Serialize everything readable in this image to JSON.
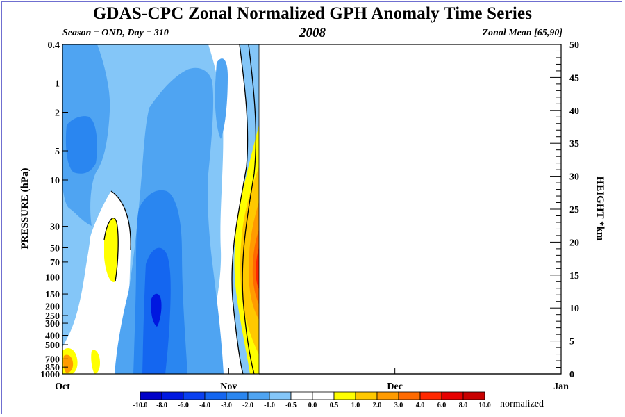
{
  "figure": {
    "title": "GDAS-CPC Zonal Normalized GPH Anomaly Time Series",
    "subtitle_left": "Season = OND, Day = 310",
    "subtitle_center": "2008",
    "subtitle_right": "Zonal Mean [65,90]"
  },
  "chart_data": {
    "type": "heatmap",
    "title": "GDAS-CPC Zonal Normalized GPH Anomaly Time Series",
    "ylabel": "PRESSURE (hPa)",
    "y2label": "HEIGHT *km",
    "x_ticks": [
      "Oct",
      "Nov",
      "Dec",
      "Jan"
    ],
    "y_ticks": [
      "0.4",
      "1",
      "2",
      "5",
      "10",
      "30",
      "50",
      "70",
      "100",
      "150",
      "200",
      "250",
      "300",
      "400",
      "500",
      "700",
      "850",
      "1000"
    ],
    "y2_ticks": [
      "0",
      "5",
      "10",
      "15",
      "20",
      "25",
      "30",
      "35",
      "40",
      "45",
      "50"
    ],
    "ylim": [
      1000,
      0.4
    ],
    "y2lim": [
      0,
      50
    ],
    "data_through": "Day 310",
    "colorbar": {
      "unit": "normalized",
      "labels": [
        "-10.0",
        "-8.0",
        "-6.0",
        "-4.0",
        "-3.0",
        "-2.0",
        "-1.0",
        "-0.5",
        "0.0",
        "0.5",
        "1.0",
        "2.0",
        "3.0",
        "4.0",
        "6.0",
        "8.0",
        "10.0"
      ],
      "colors": [
        "#0000c8",
        "#0018e0",
        "#0a40f0",
        "#1466f0",
        "#2a86f0",
        "#4fa4f2",
        "#84c6f8",
        "#ffffff",
        "#ffffff",
        "#ffff00",
        "#ffc800",
        "#ff9b00",
        "#ff6a00",
        "#ff2800",
        "#e60000",
        "#c80000"
      ]
    },
    "colors": {
      "frame": "#6f6fd0",
      "background": "#ffffff"
    }
  }
}
